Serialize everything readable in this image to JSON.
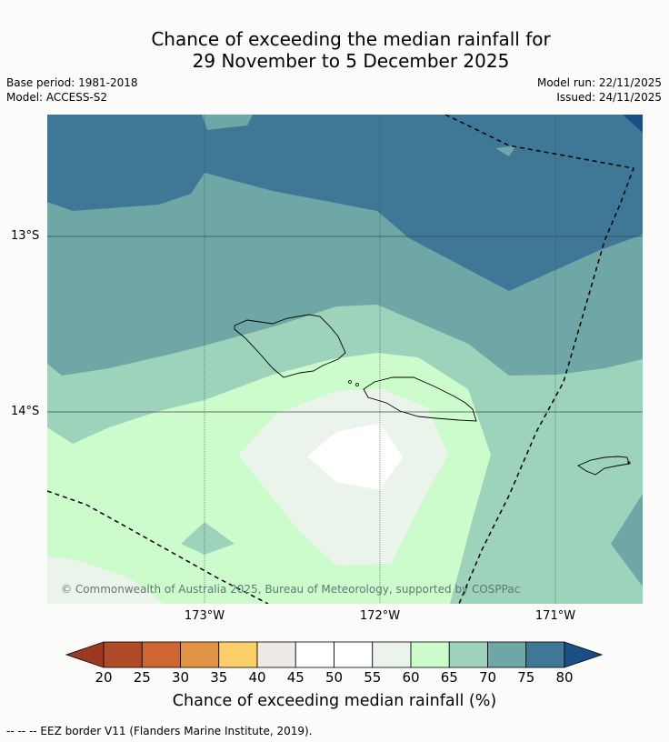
{
  "title": {
    "line1": "Chance of exceeding the median rainfall for",
    "line2": "29 November to 5 December 2025"
  },
  "meta": {
    "base_period": "Base period: 1981-2018",
    "model": "Model: ACCESS-S2",
    "model_run": "Model run: 22/11/2025",
    "issued": "Issued: 24/11/2025"
  },
  "map": {
    "lat_labels": [
      "13°S",
      "14°S"
    ],
    "lon_labels": [
      "173°W",
      "172°W",
      "171°W"
    ],
    "copyright": "© Commonwealth of Australia 2025, Bureau of Meteorology, supported by COSPPac"
  },
  "colorbar": {
    "ticks": [
      "20",
      "25",
      "30",
      "35",
      "40",
      "45",
      "50",
      "55",
      "60",
      "65",
      "70",
      "75",
      "80"
    ],
    "colors": [
      "#b14a27",
      "#cf6631",
      "#e29346",
      "#fdcf6b",
      "#ede9e4",
      "#ffffff",
      "#ffffff",
      "#eaf4ea",
      "#ccfccc",
      "#9dd2bb",
      "#6fa6a6",
      "#3f7897"
    ],
    "low_extend_color": "#9c3920",
    "high_extend_color": "#1a4f86",
    "label": "Chance of exceeding median rainfall (%)"
  },
  "footer": "--  --  -- EEZ border V11 (Flanders Marine Institute, 2019)."
}
